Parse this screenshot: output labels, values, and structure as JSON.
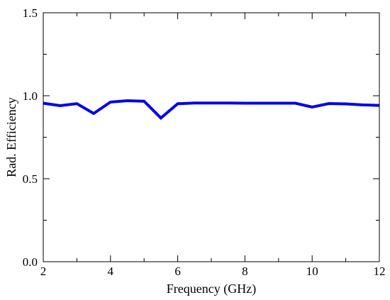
{
  "chart_data": {
    "type": "line",
    "title": "",
    "xlabel": "Frequency  (GHz)",
    "ylabel": "Rad. Efficiency",
    "xlim": [
      2,
      12
    ],
    "ylim": [
      0.0,
      1.5
    ],
    "x_ticks": [
      2,
      4,
      6,
      8,
      10,
      12
    ],
    "x_tick_labels": [
      "2",
      "4",
      "6",
      "8",
      "10",
      "12"
    ],
    "y_ticks": [
      0.0,
      0.5,
      1.0,
      1.5
    ],
    "y_tick_labels": [
      "0.0",
      "0.5",
      "1.0",
      "1.5"
    ],
    "x_minor_step": 1,
    "y_minor_step": 0.25,
    "grid": false,
    "legend": "none",
    "series": [
      {
        "color": "#0000ee",
        "x": [
          2.0,
          2.5,
          3.0,
          3.5,
          4.0,
          4.5,
          5.0,
          5.5,
          6.0,
          6.5,
          7.0,
          7.5,
          8.0,
          8.5,
          9.0,
          9.5,
          10.0,
          10.5,
          11.0,
          11.5,
          12.0
        ],
        "y": [
          0.955,
          0.94,
          0.952,
          0.893,
          0.962,
          0.97,
          0.967,
          0.866,
          0.952,
          0.956,
          0.956,
          0.956,
          0.955,
          0.955,
          0.955,
          0.955,
          0.932,
          0.953,
          0.951,
          0.945,
          0.942
        ]
      }
    ]
  }
}
